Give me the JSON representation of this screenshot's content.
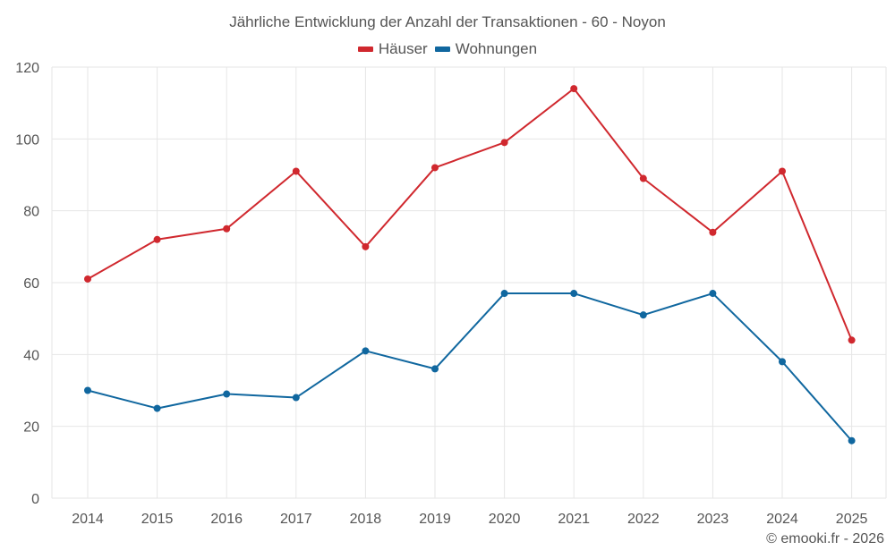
{
  "colors": {
    "houses": "#d0282e",
    "apartments": "#10679f",
    "grid": "#e6e6e6",
    "text": "#555555"
  },
  "credit": "© emooki.fr - 2026",
  "chart_data": {
    "type": "line",
    "title": "Jährliche Entwicklung der Anzahl der Transaktionen - 60 - Noyon",
    "xlabel": "",
    "ylabel": "",
    "categories": [
      "2014",
      "2015",
      "2016",
      "2017",
      "2018",
      "2019",
      "2020",
      "2021",
      "2022",
      "2023",
      "2024",
      "2025"
    ],
    "ylim": [
      0,
      120
    ],
    "yticks": [
      0,
      20,
      40,
      60,
      80,
      100,
      120
    ],
    "grid": true,
    "legend_position": "top-center",
    "series": [
      {
        "name": "Häuser",
        "color": "#d0282e",
        "values": [
          61,
          72,
          75,
          91,
          70,
          92,
          99,
          114,
          89,
          74,
          91,
          44
        ]
      },
      {
        "name": "Wohnungen",
        "color": "#10679f",
        "values": [
          30,
          25,
          29,
          28,
          41,
          36,
          57,
          57,
          51,
          57,
          38,
          16
        ]
      }
    ]
  }
}
